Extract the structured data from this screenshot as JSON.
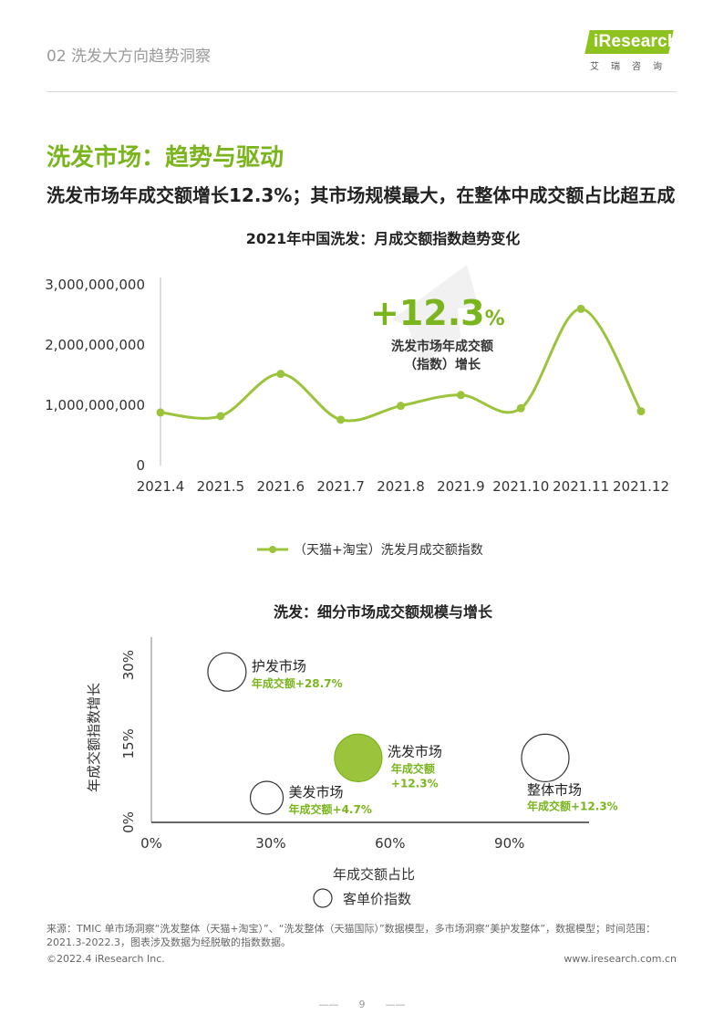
{
  "header": {
    "section_title": "02 洗发大方向趋势洞察",
    "brand_name": "iResearch",
    "brand_sub": "艾瑞咨询"
  },
  "page_title": "洗发市场：趋势与驱动",
  "headline": "洗发市场年成交额增长12.3%；其市场规模最大，在整体中成交额占比超五成",
  "colors": {
    "accent": "#8dc21f",
    "accent_dark": "#7ab51d",
    "text": "#222222"
  },
  "line_chart": {
    "title": "2021年中国洗发：月成交额指数趋势变化",
    "callout_value": "+12.3",
    "callout_unit": "%",
    "callout_line1": "洗发市场年成交额",
    "callout_line2": "（指数）增长",
    "legend": "（天猫+淘宝）洗发月成交额指数"
  },
  "bubble_chart": {
    "title": "洗发：细分市场成交额规模与增长",
    "legend": "客单价指数"
  },
  "chart_data": [
    {
      "type": "line",
      "title": "2021年中国洗发：月成交额指数趋势变化",
      "categories": [
        "2021.4",
        "2021.5",
        "2021.6",
        "2021.7",
        "2021.8",
        "2021.9",
        "2021.10",
        "2021.11",
        "2021.12"
      ],
      "series": [
        {
          "name": "（天猫+淘宝）洗发月成交额指数",
          "values": [
            880000000,
            820000000,
            1520000000,
            760000000,
            990000000,
            1170000000,
            950000000,
            2600000000,
            900000000
          ]
        }
      ],
      "yticks": [
        "0",
        "1,000,000,000",
        "2,000,000,000",
        "3,000,000,000"
      ],
      "ylim": [
        0,
        3000000000
      ],
      "color": "#9bc43c"
    },
    {
      "type": "scatter",
      "title": "洗发：细分市场成交额规模与增长",
      "xlabel": "年成交额占比",
      "ylabel": "年成交额指数增长",
      "xticks": [
        "0%",
        "30%",
        "60%",
        "90%"
      ],
      "yticks": [
        "0%",
        "15%",
        "30%"
      ],
      "xlim": [
        0,
        1.1
      ],
      "ylim": [
        0,
        0.35
      ],
      "bubbles": [
        {
          "name": "护发市场",
          "growth_label": "年成交额+28.7%",
          "x": 0.19,
          "y": 0.287,
          "size": 21,
          "highlight": false
        },
        {
          "name": "洗发市场",
          "growth_label_1": "年成交额",
          "growth_label_2": "+12.3%",
          "x": 0.52,
          "y": 0.123,
          "size": 26,
          "highlight": true
        },
        {
          "name": "美发市场",
          "growth_label": "年成交额+4.7%",
          "x": 0.29,
          "y": 0.047,
          "size": 18,
          "highlight": false
        },
        {
          "name": "整体市场",
          "growth_label": "年成交额+12.3%",
          "x": 0.99,
          "y": 0.123,
          "size": 26,
          "highlight": false
        }
      ],
      "legend": "客单价指数"
    }
  ],
  "footer": {
    "source": "来源：TMIC 单市场洞察“洗发整体（天猫+淘宝）”、“洗发整体（天猫国际）”数据模型，多市场洞察“美护发整体”，数据模型；时间范围：2021.3-2022.3，图表涉及数据为经脱敏的指数数据。",
    "copyright": "©2022.4 iResearch Inc.",
    "website": "www.iresearch.com.cn",
    "page_number": "9"
  }
}
